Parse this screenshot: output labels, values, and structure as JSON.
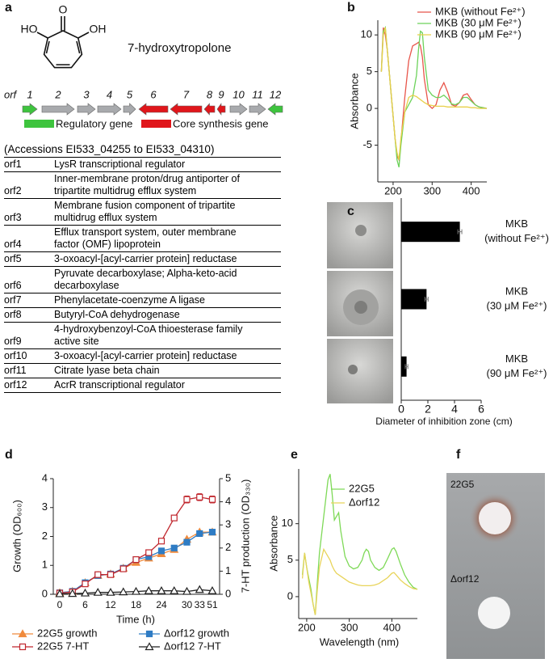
{
  "panel_labels": [
    "a",
    "b",
    "c",
    "d",
    "e",
    "f"
  ],
  "structure": {
    "atoms": [
      "O",
      "HO",
      "OH"
    ],
    "name": "7-hydroxytropolone"
  },
  "gene_cluster": {
    "label": "orf",
    "genes": [
      {
        "name": "1",
        "color": "#3ec43e",
        "direction": "right"
      },
      {
        "name": "2",
        "color": "#a8aaad",
        "direction": "right"
      },
      {
        "name": "3",
        "color": "#a8aaad",
        "direction": "right"
      },
      {
        "name": "4",
        "color": "#a8aaad",
        "direction": "right"
      },
      {
        "name": "5",
        "color": "#a8aaad",
        "direction": "right"
      },
      {
        "name": "6",
        "color": "#e0161b",
        "direction": "left"
      },
      {
        "name": "7",
        "color": "#e0161b",
        "direction": "left"
      },
      {
        "name": "8",
        "color": "#e0161b",
        "direction": "left"
      },
      {
        "name": "9",
        "color": "#e0161b",
        "direction": "left"
      },
      {
        "name": "10",
        "color": "#a8aaad",
        "direction": "right"
      },
      {
        "name": "11",
        "color": "#a8aaad",
        "direction": "right"
      },
      {
        "name": "12",
        "color": "#3ec43e",
        "direction": "left"
      }
    ],
    "legend": [
      {
        "label": "Regulatory gene",
        "color": "#3ec43e"
      },
      {
        "label": "Core synthesis gene",
        "color": "#e0161b"
      }
    ]
  },
  "table": {
    "caption": "(Accessions EI533_04255 to EI533_04310)",
    "rows": [
      [
        "orf1",
        "LysR transcriptional regulator"
      ],
      [
        "orf2",
        "Inner-membrane proton/drug antiporter of\ntripartite multidrug efflux system"
      ],
      [
        "orf3",
        "Membrane fusion component of tripartite\nmultidrug efflux system"
      ],
      [
        "orf4",
        "Efflux transport system, outer membrane\nfactor (OMF) lipoprotein"
      ],
      [
        "orf5",
        "3-oxoacyl-[acyl-carrier protein] reductase"
      ],
      [
        "orf6",
        "Pyruvate decarboxylase; Alpha-keto-acid\ndecarboxylase"
      ],
      [
        "orf7",
        "Phenylacetate-coenzyme A ligase"
      ],
      [
        "orf8",
        "Butyryl-CoA dehydrogenase"
      ],
      [
        "orf9",
        "4-hydroxybenzoyl-CoA thioesterase family\nactive site"
      ],
      [
        "orf10",
        "3-oxoacyl-[acyl-carrier protein] reductase"
      ],
      [
        "orf11",
        "Citrate lyase beta chain"
      ],
      [
        "orf12",
        "AcrR transcriptional regulator"
      ]
    ]
  },
  "photo_f": {
    "labels": [
      "22G5",
      "Δorf12"
    ]
  },
  "chart_data": [
    {
      "type": "line",
      "ylabel": "Absorbance",
      "x": [
        170,
        175,
        180,
        185,
        190,
        195,
        200,
        205,
        210,
        215,
        220,
        230,
        240,
        250,
        260,
        265,
        270,
        275,
        280,
        290,
        300,
        310,
        320,
        330,
        340,
        350,
        360,
        370,
        380,
        390,
        400,
        410,
        420,
        430,
        440
      ],
      "series": [
        {
          "name": "MKB (without Fe²⁺)",
          "color": "#e8554a",
          "values": [
            5,
            11,
            10,
            8,
            5,
            2,
            -1,
            -4,
            -6.5,
            -7,
            -4.5,
            1.5,
            6.5,
            8.5,
            8.8,
            9,
            8.5,
            7,
            4,
            0.5,
            0,
            0.5,
            2.5,
            3.5,
            2.2,
            0.5,
            0.3,
            0.8,
            1.8,
            2,
            1.2,
            0.5,
            0.2,
            0.1,
            0
          ]
        },
        {
          "name": "MKB (30 μM Fe²⁺)",
          "color": "#6cd25a",
          "values": [
            5,
            10.5,
            11,
            8,
            5,
            2,
            -1,
            -4,
            -7,
            -8,
            -5,
            -0.5,
            0.5,
            1.5,
            4.5,
            8,
            10.5,
            10.3,
            7,
            2.5,
            1.8,
            1.5,
            1.5,
            1.8,
            1.3,
            0.6,
            0.5,
            0.8,
            1.5,
            1.5,
            1,
            0.5,
            0.2,
            0.1,
            0
          ]
        },
        {
          "name": "MKB (90 μM Fe²⁺)",
          "color": "#e8d04a",
          "values": [
            5,
            10,
            11,
            8,
            5,
            2,
            -1,
            -4,
            -6,
            -7,
            -4,
            -0.5,
            1.5,
            1.8,
            1.6,
            1.4,
            1.2,
            1,
            0.8,
            0.5,
            0.4,
            0.3,
            0.3,
            0.3,
            0.2,
            0.2,
            0.2,
            0.2,
            0.2,
            0.2,
            0.1,
            0.1,
            0,
            0,
            0
          ]
        }
      ],
      "xlim": [
        165,
        440
      ],
      "xticks": [
        200,
        300,
        400
      ],
      "ylim": [
        -10,
        12
      ],
      "yticks": [
        -5,
        0,
        5,
        10
      ],
      "legend": "top-right"
    },
    {
      "type": "bar",
      "orientation": "horizontal",
      "categories": [
        [
          "MKB",
          "(without Fe²⁺)"
        ],
        [
          "MKB",
          "(30 μM Fe²⁺)"
        ],
        [
          "MKB",
          "(90 μM Fe²⁺)"
        ]
      ],
      "values": [
        4.4,
        1.9,
        0.4
      ],
      "errors": [
        0.15,
        0.12,
        0.1
      ],
      "color": "#000000",
      "xlabel": "Diameter of inhibition zone (cm)",
      "xlim": [
        0,
        6
      ],
      "xticks": [
        0,
        2,
        4,
        6
      ]
    },
    {
      "type": "line",
      "xlabel": "Time (h)",
      "ylabel": "Growth (OD₆₀₀)",
      "y2label": "7-HT production (OD₃₃₀)",
      "categories": [
        "0",
        null,
        "6",
        null,
        "12",
        null,
        "18",
        null,
        "24",
        null,
        "30",
        "33",
        "51"
      ],
      "series": [
        {
          "name": "22G5 growth",
          "color": "#f08a3c",
          "marker": "triangle",
          "filled": true,
          "values": [
            0.05,
            0.1,
            0.4,
            0.65,
            0.7,
            0.9,
            1.1,
            1.25,
            1.4,
            1.55,
            1.9,
            2.15,
            2.15
          ]
        },
        {
          "name": "Δorf12 growth",
          "color": "#2f7cc4",
          "marker": "square",
          "filled": true,
          "values": [
            0.05,
            0.1,
            0.4,
            0.65,
            0.7,
            0.9,
            1.2,
            1.3,
            1.5,
            1.6,
            1.8,
            2.1,
            2.15
          ]
        },
        {
          "name": "22G5 7-HT",
          "color": "#c0262d",
          "marker": "square",
          "filled": false,
          "axis": "y2",
          "values": [
            0.05,
            0.1,
            0.45,
            0.85,
            0.85,
            1.1,
            1.5,
            1.8,
            2.3,
            3.3,
            4.1,
            4.2,
            4.1
          ],
          "errors": [
            0,
            0,
            0,
            0,
            0,
            0,
            0,
            0.05,
            0.1,
            0.1,
            0.15,
            0.15,
            0.15
          ]
        },
        {
          "name": "Δorf12 7-HT",
          "color": "#222222",
          "marker": "triangle",
          "filled": false,
          "axis": "y2",
          "values": [
            0.02,
            0.03,
            0.05,
            0.08,
            0.08,
            0.1,
            0.12,
            0.15,
            0.15,
            0.15,
            0.12,
            0.2,
            0.15
          ]
        }
      ],
      "ylim": [
        0,
        4
      ],
      "yticks": [
        0,
        1,
        2,
        3,
        4
      ],
      "y2lim": [
        0,
        5
      ],
      "y2ticks": [
        0,
        1,
        2,
        3,
        4,
        5
      ],
      "legend": "bottom"
    },
    {
      "type": "line",
      "xlabel": "Wavelength (nm)",
      "ylabel": "Absorbance",
      "x": [
        190,
        195,
        200,
        205,
        210,
        215,
        220,
        225,
        230,
        240,
        250,
        255,
        260,
        265,
        270,
        275,
        280,
        290,
        300,
        310,
        320,
        330,
        335,
        340,
        345,
        350,
        360,
        370,
        380,
        390,
        400,
        405,
        410,
        420,
        430,
        440,
        450,
        460
      ],
      "series": [
        {
          "name": "22G5",
          "color": "#7ed957",
          "values": [
            3,
            6,
            4,
            2.5,
            1,
            -1,
            -2.5,
            2,
            6,
            11,
            16,
            16.8,
            14,
            10.5,
            11,
            11.5,
            9,
            5.5,
            4.2,
            3.8,
            4,
            5,
            6,
            6.5,
            6.2,
            5,
            4,
            3.6,
            4,
            5.2,
            6.5,
            6.7,
            6.2,
            4.5,
            3,
            2,
            1.3,
            1
          ]
        },
        {
          "name": "Δorf12",
          "color": "#e8d45a",
          "values": [
            2.5,
            6,
            4,
            2,
            0.5,
            -1,
            -2.5,
            1,
            4,
            6.5,
            5.5,
            5,
            4.2,
            3.6,
            3.2,
            3,
            2.8,
            2.4,
            2,
            1.8,
            1.6,
            1.5,
            1.5,
            1.5,
            1.5,
            1.5,
            1.6,
            1.8,
            2.2,
            2.6,
            3.2,
            3.3,
            3,
            2.3,
            1.8,
            1.4,
            1.1,
            1
          ]
        }
      ],
      "xlim": [
        185,
        460
      ],
      "xticks": [
        200,
        300,
        400
      ],
      "ylim": [
        -3,
        17.5
      ],
      "yticks": [
        0,
        5,
        10
      ],
      "legend": "top-right"
    }
  ]
}
